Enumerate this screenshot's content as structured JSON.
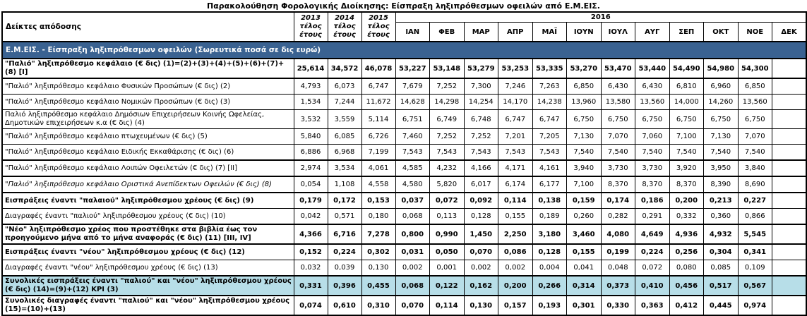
{
  "title": "Παρακολούθηση Φορολογικής Διοίκησης: Είσπραξη ληξιπρόθεσμων οφειλών από Ε.Μ.ΕΙΣ.",
  "colors": {
    "section_header_bg": "#3A6291",
    "section_header_text": "#FFFFFF",
    "highlight_row_bg": "#B7DEE8",
    "border": "#000000"
  },
  "header": {
    "indicator_col": "Δείκτες απόδοσης",
    "years": [
      {
        "year": "2013",
        "sub1": "τέλος",
        "sub2": "έτους"
      },
      {
        "year": "2014",
        "sub1": "τέλος",
        "sub2": "έτους"
      },
      {
        "year": "2015",
        "sub1": "τέλος",
        "sub2": "έτους"
      }
    ],
    "year_group": "2016",
    "months": [
      "ΙΑΝ",
      "ΦΕΒ",
      "ΜΑΡ",
      "ΑΠΡ",
      "ΜΑΪ",
      "ΙΟΥΝ",
      "ΙΟΥΛ",
      "ΑΥΓ",
      "ΣΕΠ",
      "ΟΚΤ",
      "ΝΟΕ",
      "ΔΕΚ"
    ]
  },
  "section_header": "Ε.Μ.ΕΙΣ. - Είσπραξη ληξιπρόθεσμων οφειλών (Σωρευτικά ποσά σε δις ευρώ)",
  "rows": [
    {
      "label": "\"Παλιό\" ληξιπρόθεσμο κεφάλαιο (€ δις) (1)=(2)+(3)+(4)+(5)+(6)+(7)+(8) [I]",
      "style": "bold",
      "group_border": "bottom",
      "values": [
        "25,614",
        "34,572",
        "46,078",
        "53,227",
        "53,148",
        "53,279",
        "53,253",
        "53,335",
        "53,270",
        "53,470",
        "53,440",
        "54,490",
        "54,980",
        "54,300",
        ""
      ]
    },
    {
      "label": "\"Παλιό\" ληξιπρόθεσμο κεφάλαιο Φυσικών Προσώπων (€ δις) (2)",
      "style": "regular",
      "group_border": "",
      "values": [
        "4,793",
        "6,073",
        "6,747",
        "7,679",
        "7,252",
        "7,300",
        "7,246",
        "7,263",
        "6,850",
        "6,430",
        "6,430",
        "6,810",
        "6,960",
        "6,850",
        ""
      ]
    },
    {
      "label": "\"Παλιό\" ληξιπρόθεσμο κεφάλαιο Νομικών Προσώπων (€ δις) (3)",
      "style": "regular",
      "group_border": "",
      "values": [
        "1,534",
        "7,244",
        "11,672",
        "14,628",
        "14,298",
        "14,254",
        "14,170",
        "14,238",
        "13,960",
        "13,580",
        "13,560",
        "14,000",
        "14,260",
        "13,560",
        ""
      ]
    },
    {
      "label": "Παλιό ληξιπρόθεσμο κεφάλαιο Δημόσιων Επιχειρήσεων Κοινής Ωφελείας, Δημοτικών επιχειρήσεων κ.α (€ δις) (4)",
      "style": "regular",
      "group_border": "",
      "values": [
        "3,532",
        "3,559",
        "5,114",
        "6,751",
        "6,749",
        "6,748",
        "6,747",
        "6,747",
        "6,750",
        "6,750",
        "6,750",
        "6,750",
        "6,750",
        "6,750",
        ""
      ]
    },
    {
      "label": "\"Παλιό\" ληξιπρόθεσμο κεφάλαιο πτωχευμένων (€ δις)  (5)",
      "style": "regular",
      "group_border": "",
      "values": [
        "5,840",
        "6,085",
        "6,726",
        "7,460",
        "7,252",
        "7,252",
        "7,201",
        "7,205",
        "7,130",
        "7,070",
        "7,060",
        "7,100",
        "7,130",
        "7,070",
        ""
      ]
    },
    {
      "label": "\"Παλιό\" ληξιπρόθεσμο κεφάλαιο Ειδικής Εκκαθάρισης (€ δις) (6)",
      "style": "regular",
      "group_border": "",
      "values": [
        "6,886",
        "6,968",
        "7,199",
        "7,543",
        "7,543",
        "7,543",
        "7,543",
        "7,543",
        "7,540",
        "7,540",
        "7,540",
        "7,540",
        "7,540",
        "7,540",
        ""
      ]
    },
    {
      "label": " \"Παλιό\" ληξιπρόθεσμο κεφάλαιο Λοιπών Οφειλετών (€ δις) (7) [II]",
      "style": "regular",
      "group_border": "top",
      "values": [
        "2,974",
        "3,534",
        "4,061",
        "4,585",
        "4,232",
        "4,166",
        "4,171",
        "4,161",
        "3,940",
        "3,730",
        "3,730",
        "3,920",
        "3,950",
        "3,840",
        ""
      ]
    },
    {
      "label": "\"Παλιό\" ληξιπρόθεσμο κεφάλαιο Οριστικά Ανεπίδεκτων Οφειλών (€ δις) (8)",
      "style": "italic",
      "group_border": "top",
      "values": [
        "0,054",
        "1,108",
        "4,558",
        "4,580",
        "5,820",
        "6,017",
        "6,174",
        "6,177",
        "7,100",
        "8,370",
        "8,370",
        "8,370",
        "8,390",
        "8,690",
        ""
      ]
    },
    {
      "label": "Εισπράξεις έναντι \"παλαιού\" ληξιπρόθεσμου χρέους (€ δις) (9)",
      "style": "bold",
      "group_border": "top",
      "values": [
        "0,179",
        "0,172",
        "0,153",
        "0,037",
        "0,072",
        "0,092",
        "0,114",
        "0,138",
        "0,159",
        "0,174",
        "0,186",
        "0,200",
        "0,213",
        "0,227",
        ""
      ]
    },
    {
      "label": "Διαγραφές έναντι \"παλιού\" ληξιπρόθεσμου χρέους (€ δις) (10)",
      "style": "regular",
      "group_border": "",
      "values": [
        "0,042",
        "0,571",
        "0,180",
        "0,068",
        "0,113",
        "0,128",
        "0,155",
        "0,189",
        "0,260",
        "0,282",
        "0,291",
        "0,332",
        "0,360",
        "0,866",
        ""
      ]
    },
    {
      "label": "\"Νέο\" ληξιπρόθεσμο χρέος που προστέθηκε στα βιβλία έως τον προηγούμενο μήνα από το μήνα αναφοράς (€ δις) (11) [III, IV]",
      "style": "bold",
      "group_border": "top",
      "values": [
        "4,366",
        "6,716",
        "7,278",
        "0,800",
        "0,990",
        "1,450",
        "2,250",
        "3,180",
        "3,460",
        "4,080",
        "4,649",
        "4,936",
        "4,932",
        "5,545",
        ""
      ]
    },
    {
      "label": "Εισπράξεις έναντι \"νέου\" ληξιπρόθεσμου χρέους (€ δις)  (12)",
      "style": "bold",
      "group_border": "top",
      "values": [
        "0,152",
        "0,224",
        "0,302",
        "0,031",
        "0,050",
        "0,070",
        "0,086",
        "0,128",
        "0,155",
        "0,199",
        "0,224",
        "0,256",
        "0,304",
        "0,341",
        ""
      ]
    },
    {
      "label": "Διαγραφές έναντι \"νέου\" ληξιπρόθεσμου χρέους (€ δις) (13)",
      "style": "regular",
      "group_border": "",
      "values": [
        "0,032",
        "0,039",
        "0,130",
        "0,002",
        "0,001",
        "0,002",
        "0,002",
        "0,004",
        "0,041",
        "0,048",
        "0,072",
        "0,080",
        "0,085",
        "0,109",
        ""
      ]
    },
    {
      "label": "Συνολικές εισπράξεις έναντι \"παλιού\" και \"νέου\" ληξιπρόθεσμου χρέους (€ δις) (14)=(9)+(12) KPI (3)",
      "style": "bold highlight",
      "group_border": "top",
      "values": [
        "0,331",
        "0,396",
        "0,455",
        "0,068",
        "0,122",
        "0,162",
        "0,200",
        "0,266",
        "0,314",
        "0,373",
        "0,410",
        "0,456",
        "0,517",
        "0,567",
        ""
      ]
    },
    {
      "label": "Συνολικές διαγραφές έναντι \"παλιού\" και \"νέου\" ληξιπρόθεσμου χρέους (15)=(10)+(13)",
      "style": "bold",
      "group_border": "top",
      "values": [
        "0,074",
        "0,610",
        "0,310",
        "0,070",
        "0,114",
        "0,130",
        "0,157",
        "0,193",
        "0,301",
        "0,330",
        "0,363",
        "0,412",
        "0,445",
        "0,974",
        ""
      ]
    }
  ]
}
